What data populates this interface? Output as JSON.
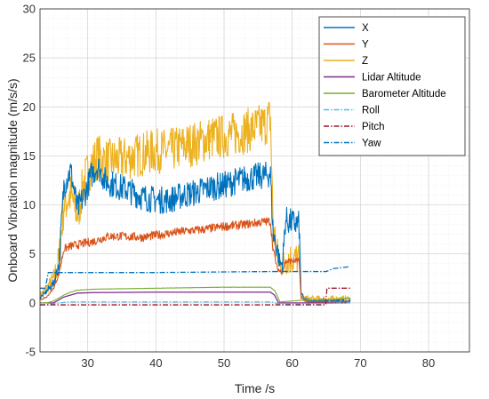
{
  "chart_data": {
    "type": "line",
    "xlabel": "Time /s",
    "ylabel": "Onboard Vibration magnitude (m/s/s)",
    "xlim": [
      23,
      86
    ],
    "ylim": [
      -5,
      30
    ],
    "xticks": [
      30,
      40,
      50,
      60,
      70,
      80
    ],
    "yticks": [
      -5,
      0,
      5,
      10,
      15,
      20,
      25,
      30
    ],
    "grid": true,
    "minor_grid": true,
    "legend_position": "top-right",
    "series": [
      {
        "name": "X",
        "color": "#0072BD",
        "style": "solid",
        "noise": 1.4,
        "x": [
          23,
          24,
          25,
          25.8,
          26.5,
          27.5,
          28.5,
          29.5,
          30.5,
          31.5,
          32.5,
          34,
          36,
          38,
          40,
          42,
          44,
          46,
          48,
          50,
          52,
          54,
          56,
          56.8,
          57.2,
          57.8,
          58.2,
          58.6,
          59,
          59.5,
          60,
          61,
          61.3,
          61.8,
          62.5,
          65,
          68.5
        ],
        "y": [
          0.5,
          1.2,
          2,
          4,
          12,
          13.5,
          9.5,
          11,
          13,
          14,
          12.5,
          12,
          11.5,
          10.8,
          10.5,
          10.5,
          11,
          11.3,
          11.8,
          12,
          12.5,
          12.8,
          13,
          13.2,
          7,
          5.5,
          4,
          4,
          8.5,
          8.3,
          8.2,
          8,
          1,
          0.3,
          0.2,
          0.2,
          0.2
        ]
      },
      {
        "name": "Y",
        "color": "#D95319",
        "style": "solid",
        "noise": 0.45,
        "x": [
          23,
          24,
          25,
          25.8,
          26.5,
          27.5,
          29,
          31,
          33,
          35,
          38,
          41,
          44,
          47,
          50,
          53,
          56,
          56.8,
          57.2,
          57.8,
          58.2,
          58.6,
          59,
          60,
          61,
          61.3,
          61.8,
          62.5,
          65,
          68.5
        ],
        "y": [
          0.3,
          0.6,
          1.5,
          3,
          5.5,
          5.8,
          6,
          6.3,
          6.8,
          6.8,
          6.7,
          7,
          7.3,
          7.5,
          7.8,
          8,
          8.3,
          8.3,
          5.5,
          3.5,
          3.3,
          3.2,
          4.2,
          4.3,
          4.3,
          0.6,
          0.2,
          0.1,
          0.1,
          0.1
        ]
      },
      {
        "name": "Z",
        "color": "#EDB120",
        "style": "solid",
        "noise": 2.3,
        "x": [
          23,
          24,
          25,
          25.8,
          26.5,
          27.5,
          28.5,
          29.5,
          30.5,
          31.5,
          32.5,
          34,
          36,
          38,
          40,
          42,
          44,
          46,
          48,
          50,
          52,
          54,
          56,
          56.8,
          57.2,
          57.8,
          58.2,
          58.6,
          59,
          60,
          61,
          61.3,
          61.8,
          62.5,
          65,
          68.5
        ],
        "y": [
          0.8,
          1.5,
          2.5,
          4.5,
          10,
          11,
          9,
          12.5,
          14,
          15,
          14.5,
          14.5,
          14.8,
          15.2,
          15.5,
          15.5,
          16,
          16.3,
          16.8,
          17,
          17.3,
          17.7,
          18.2,
          19,
          8,
          5,
          4,
          4,
          4.5,
          4.5,
          4.5,
          0.7,
          0.5,
          0.4,
          0.4,
          0.4
        ]
      },
      {
        "name": "Lidar Altitude",
        "color": "#7E2F8E",
        "style": "solid",
        "noise": 0,
        "x": [
          23,
          24,
          25,
          26.5,
          27.5,
          28.5,
          31,
          40,
          50,
          56.8,
          57.4,
          58,
          62,
          65,
          68.5
        ],
        "y": [
          0,
          0,
          0,
          0.6,
          0.8,
          1,
          1.05,
          1.1,
          1.1,
          1.1,
          0.8,
          0,
          0,
          0,
          0
        ]
      },
      {
        "name": "Barometer Altitude",
        "color": "#77AC30",
        "style": "solid",
        "noise": 0.05,
        "x": [
          23,
          24,
          25,
          26.5,
          27.5,
          28.5,
          31,
          40,
          50,
          56.8,
          57.5,
          58.2,
          62,
          65,
          68.5
        ],
        "y": [
          0,
          0,
          0.2,
          0.8,
          1.1,
          1.3,
          1.4,
          1.5,
          1.6,
          1.6,
          1.2,
          0.1,
          0.3,
          0.3,
          0.5
        ]
      },
      {
        "name": "Roll",
        "color": "#4DBEEE",
        "style": "dashdot",
        "noise": 0,
        "x": [
          23,
          25,
          27,
          57,
          58,
          62,
          68.5
        ],
        "y": [
          -0.2,
          -0.1,
          0.1,
          0.1,
          -0.1,
          -0.1,
          0
        ]
      },
      {
        "name": "Pitch",
        "color": "#A2142F",
        "style": "dashdot",
        "noise": 0,
        "x": [
          23,
          57,
          58,
          64.9,
          65.1,
          68.5
        ],
        "y": [
          -0.2,
          -0.2,
          -0.2,
          -0.2,
          1.5,
          1.5
        ]
      },
      {
        "name": "Yaw",
        "color": "#0072BD",
        "style": "dashdot",
        "noise": 0,
        "x": [
          23,
          23.8,
          24.2,
          40,
          57,
          65,
          66,
          68.5
        ],
        "y": [
          1.5,
          1.5,
          3.1,
          3.1,
          3.2,
          3.2,
          3.5,
          3.7
        ]
      }
    ]
  }
}
